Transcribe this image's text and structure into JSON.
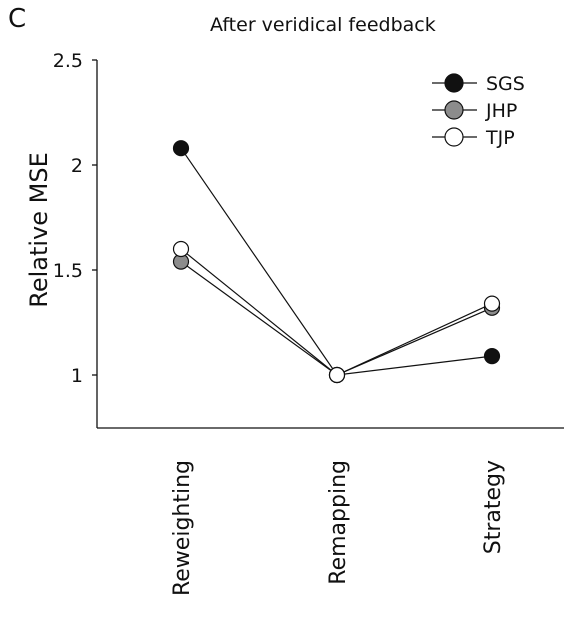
{
  "panel_label": "C",
  "chart_data": {
    "type": "line",
    "title": "After veridical feedback",
    "xlabel": "",
    "ylabel": "Relative MSE",
    "categories": [
      "Reweighting",
      "Remapping",
      "Strategy"
    ],
    "ylim": [
      0.75,
      2.5
    ],
    "yticks": [
      1,
      1.5,
      2,
      2.5
    ],
    "ytick_labels": [
      "1",
      "1.5",
      "2",
      "2.5"
    ],
    "grid": false,
    "legend_position": "top-right",
    "series": [
      {
        "name": "SGS",
        "values": [
          2.08,
          1.0,
          1.09
        ],
        "color": "#111111"
      },
      {
        "name": "JHP",
        "values": [
          1.54,
          1.0,
          1.32
        ],
        "color": "#8c8c8c"
      },
      {
        "name": "TJP",
        "values": [
          1.6,
          1.0,
          1.34
        ],
        "color": "#ffffff"
      }
    ]
  }
}
